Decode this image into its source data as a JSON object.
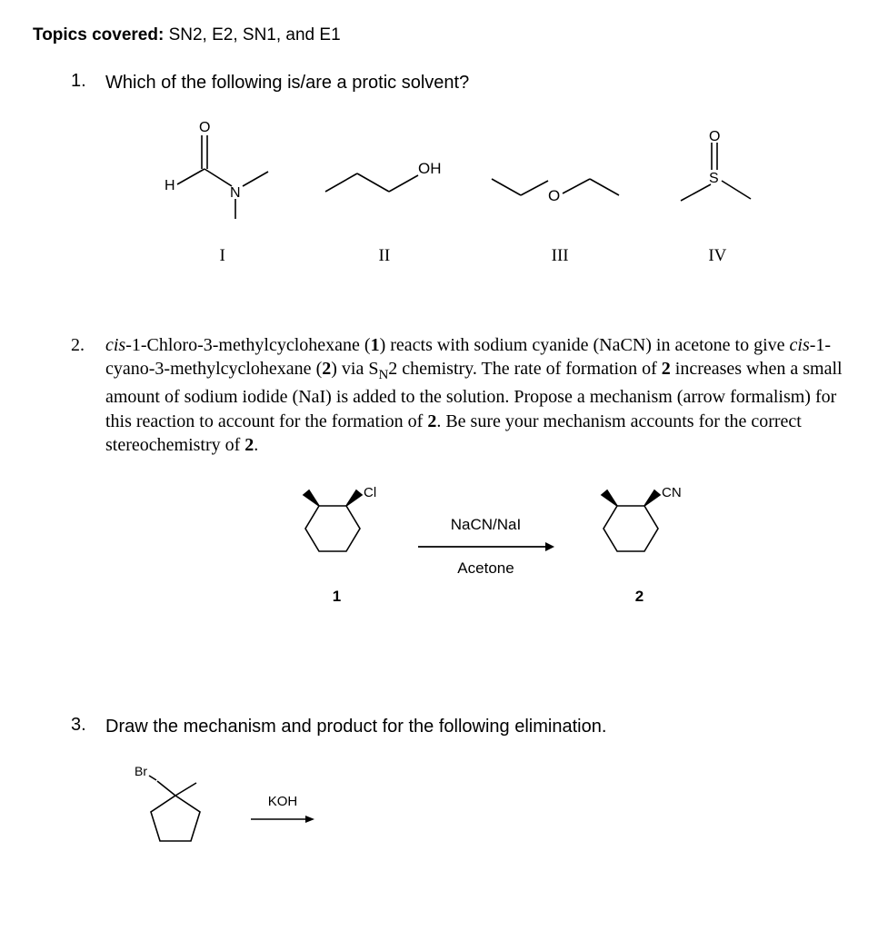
{
  "topics_label": "Topics covered:",
  "topics_value": "SN2, E2, SN1, and E1",
  "q1": {
    "num": "1.",
    "text": "Which of the following is/are a protic solvent?",
    "labels": [
      "I",
      "II",
      "III",
      "IV"
    ],
    "atom_OH": "OH",
    "atom_H": "H",
    "atom_N": "N",
    "atom_O_chain": "O",
    "atom_O_dbl": "O",
    "atom_S": "S"
  },
  "q2": {
    "num": "2.",
    "text_parts": [
      "cis",
      "-1-Chloro-3-methylcyclohexane (",
      "1",
      ") reacts with sodium cyanide (NaCN) in acetone to give ",
      "cis",
      "-1-cyano-3-methylcyclohexane (",
      "2",
      ") via S",
      "N",
      "2 chemistry. The rate of formation of ",
      "2",
      " increases when a small amount of sodium iodide (NaI) is added to the solution. Propose a mechanism (arrow formalism) for this reaction to account for the formation of ",
      "2",
      ". Be sure your mechanism accounts for the correct stereochemistry of ",
      "2",
      "."
    ],
    "reagent1": "NaCN/NaI",
    "reagent2": "Acetone",
    "sub_Cl": "Cl",
    "sub_CN": "CN",
    "comp1": "1",
    "comp2": "2"
  },
  "q3": {
    "num": "3.",
    "text": "Draw the mechanism and product for the following elimination.",
    "atom_Br": "Br",
    "reagent": "KOH"
  },
  "colors": {
    "line": "#000000",
    "text": "#000000"
  }
}
